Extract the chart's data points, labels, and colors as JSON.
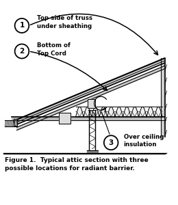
{
  "title": "Figure 1.  Typical attic section with three\npossible locations for radiant barrier.",
  "label1": "Top side of truss\nunder sheathing",
  "label2": "Bottom of\nTop Cord",
  "label3": "Over ceiling\ninsulation",
  "bg_color": "#ffffff",
  "line_color": "#000000",
  "fill_light": "#cccccc",
  "title_fontsize": 6.5,
  "label_fontsize": 6.2
}
